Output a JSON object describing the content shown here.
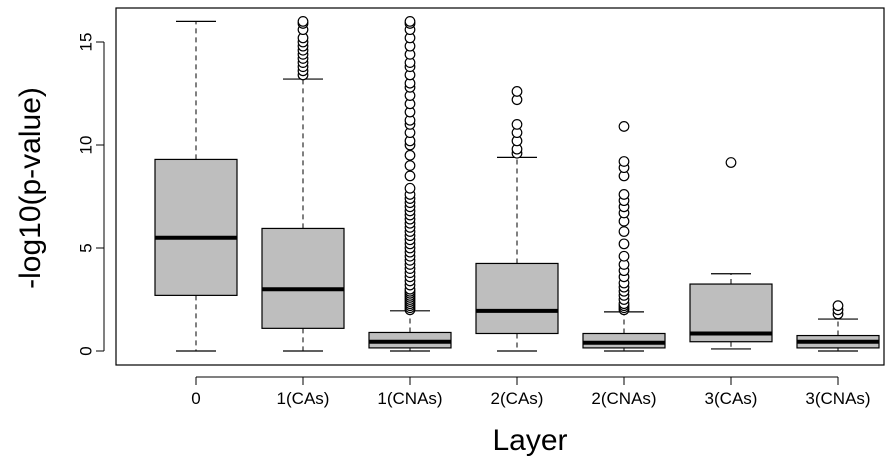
{
  "chart_data": {
    "type": "boxplot",
    "xlabel": "Layer",
    "ylabel": "-log10(p-value)",
    "ylim": [
      -0.8,
      16.5
    ],
    "yticks": [
      0,
      5,
      10,
      15
    ],
    "categories": [
      "0",
      "1(CAs)",
      "1(CNAs)",
      "2(CAs)",
      "2(CNAs)",
      "3(CAs)",
      "3(CNAs)"
    ],
    "box_fill": "#bebebe",
    "boxes": [
      {
        "label": "0",
        "whisker_low": 0,
        "q1": 2.7,
        "median": 5.5,
        "q3": 9.3,
        "whisker_high": 16.0,
        "outliers": []
      },
      {
        "label": "1(CAs)",
        "whisker_low": 0,
        "q1": 1.1,
        "median": 3.0,
        "q3": 5.95,
        "whisker_high": 13.2,
        "outliers": [
          13.4,
          13.6,
          13.8,
          14.0,
          14.2,
          14.4,
          14.6,
          14.8,
          15.0,
          15.2,
          15.6,
          15.9,
          16.0
        ]
      },
      {
        "label": "1(CNAs)",
        "whisker_low": 0,
        "q1": 0.15,
        "median": 0.45,
        "q3": 0.9,
        "whisker_high": 1.95,
        "outliers": [
          2.0,
          2.1,
          2.2,
          2.3,
          2.4,
          2.5,
          2.6,
          2.7,
          2.8,
          2.9,
          3.0,
          3.2,
          3.4,
          3.6,
          3.8,
          4.0,
          4.2,
          4.4,
          4.6,
          4.8,
          5.0,
          5.2,
          5.4,
          5.6,
          5.8,
          6.0,
          6.2,
          6.4,
          6.6,
          6.8,
          7.0,
          7.2,
          7.4,
          7.6,
          7.9,
          8.5,
          9.0,
          9.5,
          10.0,
          10.2,
          10.6,
          11.0,
          11.2,
          11.6,
          12.0,
          12.4,
          12.8,
          13.0,
          13.4,
          13.8,
          14.0,
          14.4,
          14.8,
          15.2,
          15.6,
          15.9,
          16.0
        ]
      },
      {
        "label": "2(CAs)",
        "whisker_low": 0,
        "q1": 0.85,
        "median": 1.95,
        "q3": 4.25,
        "whisker_high": 9.4,
        "outliers": [
          9.6,
          9.8,
          10.2,
          10.6,
          11.0,
          12.2,
          12.6
        ]
      },
      {
        "label": "2(CNAs)",
        "whisker_low": 0,
        "q1": 0.15,
        "median": 0.4,
        "q3": 0.85,
        "whisker_high": 1.9,
        "outliers": [
          2.0,
          2.1,
          2.2,
          2.3,
          2.5,
          2.7,
          2.9,
          3.1,
          3.3,
          3.6,
          3.9,
          4.2,
          4.6,
          5.2,
          5.8,
          6.3,
          6.7,
          7.0,
          7.3,
          7.6,
          8.5,
          8.9,
          9.2,
          10.9
        ]
      },
      {
        "label": "3(CAs)",
        "whisker_low": 0.1,
        "q1": 0.45,
        "median": 0.85,
        "q3": 3.25,
        "whisker_high": 3.75,
        "outliers": [
          9.15
        ]
      },
      {
        "label": "3(CNAs)",
        "whisker_low": 0,
        "q1": 0.15,
        "median": 0.45,
        "q3": 0.75,
        "whisker_high": 1.55,
        "outliers": [
          1.8,
          2.0,
          2.2
        ]
      }
    ]
  }
}
